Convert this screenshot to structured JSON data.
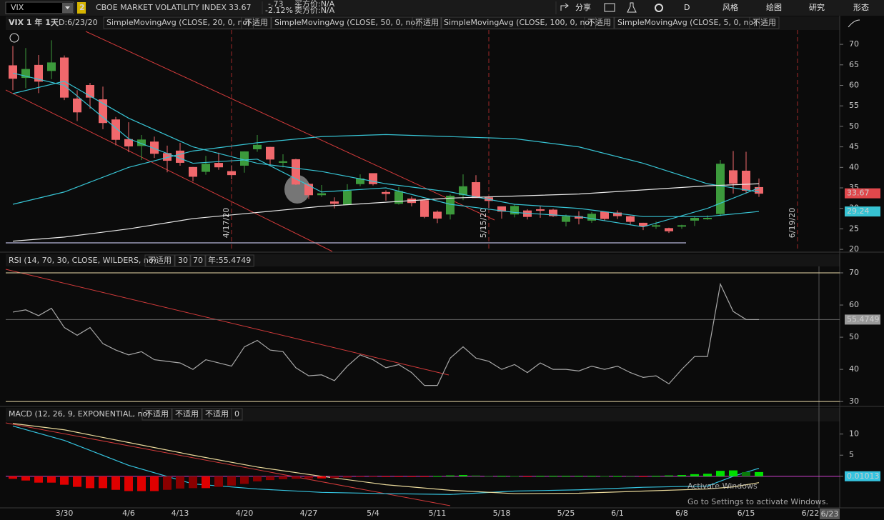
{
  "toolbar": {
    "symbol": "VIX",
    "link_group": "2",
    "description": "CBOE MARKET VOLATILITY INDEX",
    "last": "33.67",
    "change": "-.73",
    "change_pct": "-2.12%",
    "bid": "买方价:N/A",
    "ask": "卖方价:N/A",
    "buttons": [
      "分享",
      "D",
      "风格",
      "绘图",
      "研究",
      "形态"
    ]
  },
  "chart_data": [
    {
      "type": "candlestick",
      "title": "VIX 1 年 1天",
      "subtitle": "D:6/23/20",
      "categories": [
        null,
        null,
        null,
        null,
        "3/30",
        null,
        null,
        null,
        null,
        "4/6",
        null,
        null,
        null,
        "4/13",
        null,
        null,
        null,
        null,
        "4/20",
        null,
        null,
        null,
        null,
        "4/27",
        null,
        null,
        null,
        null,
        "5/4",
        null,
        null,
        null,
        null,
        "5/11",
        null,
        null,
        null,
        null,
        "5/18",
        null,
        null,
        null,
        null,
        "5/25",
        null,
        null,
        null,
        "6/1",
        null,
        null,
        null,
        null,
        "6/8",
        null,
        null,
        null,
        null,
        "6/15",
        null,
        null,
        null,
        null,
        "6/22"
      ],
      "open": [
        64.8,
        61.9,
        64.9,
        63.6,
        66.7,
        56.7,
        60.0,
        56.5,
        51.6,
        46.8,
        45.3,
        46.2,
        43.4,
        44.0,
        40.0,
        39.0,
        41.0,
        39.0,
        40.5,
        44.5,
        44.9,
        41.2,
        41.9,
        35.9,
        33.3,
        31.6,
        31.0,
        36.0,
        38.5,
        33.9,
        31.2,
        32.3,
        31.9,
        29.1,
        28.6,
        33.3,
        36.3,
        32.6,
        30.4,
        28.6,
        29.4,
        29.7,
        29.6,
        26.8,
        28.0,
        27.1,
        29.1,
        28.9,
        28.0,
        26.4,
        25.8,
        25.1,
        25.8,
        27.1,
        27.6,
        28.7,
        39.2,
        39.1,
        35.1,
        null,
        null,
        null,
        null
      ],
      "high": [
        69.6,
        69.1,
        67.4,
        71.0,
        67.3,
        58.8,
        60.6,
        59.7,
        52.3,
        51.0,
        47.9,
        47.5,
        45.3,
        46.0,
        40.1,
        42.8,
        43.6,
        40.5,
        43.9,
        47.9,
        45.0,
        43.2,
        42.1,
        36.2,
        35.7,
        32.7,
        35.9,
        38.3,
        38.5,
        34.4,
        35.2,
        32.9,
        32.2,
        29.5,
        33.4,
        38.3,
        38.1,
        32.9,
        30.4,
        31.0,
        29.8,
        30.5,
        29.9,
        28.5,
        29.3,
        29.1,
        29.2,
        29.5,
        28.2,
        26.5,
        26.8,
        25.3,
        26.0,
        28.0,
        28.3,
        41.8,
        44.0,
        43.8,
        37.3,
        null,
        null,
        null,
        null
      ],
      "low": [
        58.8,
        59.3,
        58.1,
        61.5,
        56.4,
        51.3,
        54.3,
        49.3,
        45.4,
        43.7,
        41.8,
        42.3,
        38.8,
        40.4,
        36.6,
        38.2,
        39.4,
        37.1,
        38.7,
        43.8,
        40.3,
        40.0,
        35.7,
        32.3,
        32.8,
        30.0,
        31.0,
        35.4,
        35.6,
        31.9,
        30.9,
        30.5,
        27.6,
        26.4,
        27.3,
        32.0,
        32.6,
        30.1,
        27.5,
        27.8,
        27.3,
        27.7,
        27.9,
        25.6,
        26.1,
        26.5,
        26.9,
        27.4,
        26.1,
        24.7,
        25.0,
        24.0,
        25.0,
        25.7,
        27.2,
        28.1,
        33.6,
        33.6,
        32.8,
        null,
        null,
        null,
        null
      ],
      "close": [
        61.7,
        63.9,
        61.0,
        65.5,
        57.1,
        53.5,
        57.1,
        50.9,
        46.8,
        45.2,
        46.7,
        43.4,
        41.7,
        41.2,
        37.8,
        40.8,
        40.1,
        38.2,
        43.8,
        45.4,
        42.0,
        41.4,
        35.9,
        33.3,
        33.6,
        31.2,
        34.2,
        37.2,
        36.0,
        33.6,
        34.1,
        31.4,
        28.0,
        27.6,
        33.0,
        35.3,
        32.6,
        31.9,
        29.3,
        30.5,
        28.0,
        29.5,
        28.2,
        28.0,
        27.6,
        28.6,
        27.5,
        28.2,
        26.8,
        25.7,
        25.8,
        24.5,
        25.8,
        27.6,
        27.6,
        40.8,
        36.1,
        34.4,
        33.67,
        null,
        null,
        null,
        null
      ],
      "up_color": "#3c9a3c",
      "down_color": "#f0686c",
      "ylim": [
        19.5,
        73.5
      ],
      "yticks": [
        20,
        25,
        30,
        35,
        40,
        45,
        50,
        55,
        60,
        65,
        70
      ],
      "last_price": 33.67,
      "last_price_color": "#e0484c",
      "series": [
        {
          "name": "SimpleMovingAvg (CLOSE, 20, 0, no)",
          "status": "不适用",
          "color": "#37c3d3",
          "label_last": true,
          "x": [
            0,
            4,
            9,
            14,
            19,
            24,
            29,
            34,
            39,
            44,
            49,
            54,
            58
          ],
          "values": [
            58,
            61,
            52,
            45,
            41,
            39,
            36,
            34,
            31,
            30,
            28,
            28,
            29.24
          ]
        },
        {
          "name": "SimpleMovingAvg (CLOSE, 50, 0, no)",
          "status": "不适用",
          "color": "#37c3d3",
          "x": [
            0,
            4,
            9,
            14,
            19,
            24,
            29,
            34,
            39,
            44,
            49,
            54,
            58
          ],
          "values": [
            31,
            34,
            40,
            44,
            46,
            47.5,
            48,
            47.5,
            47,
            45,
            41,
            36,
            34
          ]
        },
        {
          "name": "SimpleMovingAvg (CLOSE, 100, 0, no)",
          "status": "不适用",
          "color": "#e8e8e8",
          "x": [
            0,
            4,
            9,
            14,
            19,
            24,
            29,
            34,
            39,
            44,
            49,
            54,
            58
          ],
          "values": [
            22,
            23,
            25,
            27.5,
            29,
            30.5,
            31.5,
            32.5,
            33,
            33.5,
            34.5,
            35.5,
            36
          ]
        },
        {
          "name": "SimpleMovingAvg (CLOSE, 5, 0, no)",
          "status": "不适用",
          "color": "#37c3d3",
          "x": [
            0,
            4,
            9,
            14,
            19,
            24,
            29,
            34,
            39,
            44,
            49,
            54,
            58
          ],
          "values": [
            63,
            60,
            47,
            41,
            42,
            34,
            35,
            31,
            29,
            28,
            25.5,
            30,
            35
          ]
        }
      ],
      "events": [
        {
          "x": 17,
          "label": "4/17/20"
        },
        {
          "x": 37,
          "label": "5/15/20"
        },
        {
          "x": 61,
          "label": "6/19/20"
        }
      ],
      "current_date": "6/23"
    },
    {
      "type": "line",
      "title": "RSI (14, 70, 30, CLOSE, WILDERS, no)",
      "status": "不适用",
      "oversold": 30,
      "overbought": 70,
      "readout": "年:55.4749",
      "ylim": [
        28.7,
        72
      ],
      "yticks": [
        30,
        40,
        50,
        60,
        70
      ],
      "series": [
        {
          "color": "#a8a8a8",
          "label_last": true,
          "values": [
            57.8,
            58.5,
            56.7,
            59,
            53,
            50.6,
            53,
            48,
            46,
            44.5,
            45.5,
            43,
            42.5,
            42,
            40,
            43,
            42,
            41,
            47,
            49,
            46,
            45.5,
            40.5,
            38,
            38.3,
            36.5,
            41,
            44.5,
            43,
            40.5,
            41.5,
            39,
            35,
            35,
            43.5,
            47,
            43.5,
            42.5,
            40,
            41.5,
            39,
            42,
            40,
            40,
            39.5,
            41,
            40,
            41,
            39,
            37.5,
            38,
            35.5,
            40,
            44,
            44,
            66.5,
            58,
            55.5,
            55.4749,
            null,
            null,
            null,
            null
          ]
        }
      ]
    },
    {
      "type": "macd",
      "title": "MACD (12, 26, 9, EXPONENTIAL, no)",
      "ylim": [
        -7.3,
        12.65
      ],
      "yticks": [
        0,
        5,
        10
      ],
      "zero_line": 0,
      "zero_color": "#d040d0",
      "last_value": 0.01013,
      "bar_colors": [
        "#00e000",
        "#0a7a0a",
        "#e00000",
        "#8a0000"
      ],
      "series": [
        {
          "type": "line",
          "status": "不适用",
          "color": "#35c4e0",
          "x": [
            0,
            4,
            9,
            14,
            19,
            24,
            29,
            34,
            39,
            44,
            49,
            54,
            56,
            58
          ],
          "values": [
            11.9,
            8.5,
            2.6,
            -1.8,
            -3,
            -3.8,
            -4.1,
            -4.3,
            -3.5,
            -3.2,
            -2.6,
            -2.3,
            0,
            1.9
          ]
        },
        {
          "type": "line",
          "status": "不适用",
          "color": "#e8d89a",
          "x": [
            0,
            4,
            9,
            14,
            19,
            24,
            29,
            34,
            39,
            44,
            49,
            54,
            56,
            58
          ],
          "values": [
            12.5,
            11,
            8,
            5,
            2.2,
            0,
            -2,
            -3.3,
            -4.1,
            -4,
            -3.5,
            -3,
            -2.5,
            -1.5
          ]
        },
        {
          "type": "histogram",
          "status": "不适用",
          "color": "#e04040",
          "values": [
            -0.6,
            -1.0,
            -1.5,
            -1.5,
            -2.0,
            -2.5,
            -2.8,
            -2.8,
            -3.2,
            -3.5,
            -3.5,
            -3.5,
            -3.2,
            -2.9,
            -2.8,
            -2.8,
            -2.5,
            -2.2,
            -1.8,
            -1.2,
            -0.9,
            -0.7,
            -0.6,
            -0.5,
            -0.5,
            -0.4,
            -0.3,
            -0.2,
            -0.1,
            -0.1,
            -0.1,
            -0.1,
            -0.1,
            0.05,
            0.2,
            0.3,
            0.2,
            0.1,
            0.1,
            0.05,
            -0.05,
            0.1,
            0.1,
            0.1,
            0.1,
            0.1,
            0.05,
            0.05,
            0,
            -0.05,
            0.1,
            0.2,
            0.3,
            0.5,
            0.6,
            1.3,
            1.4,
            1.0,
            1.0,
            null,
            null,
            null,
            null
          ]
        }
      ]
    }
  ],
  "watermark": {
    "title": "Activate Windows",
    "text": "Go to Settings to activate Windows."
  }
}
